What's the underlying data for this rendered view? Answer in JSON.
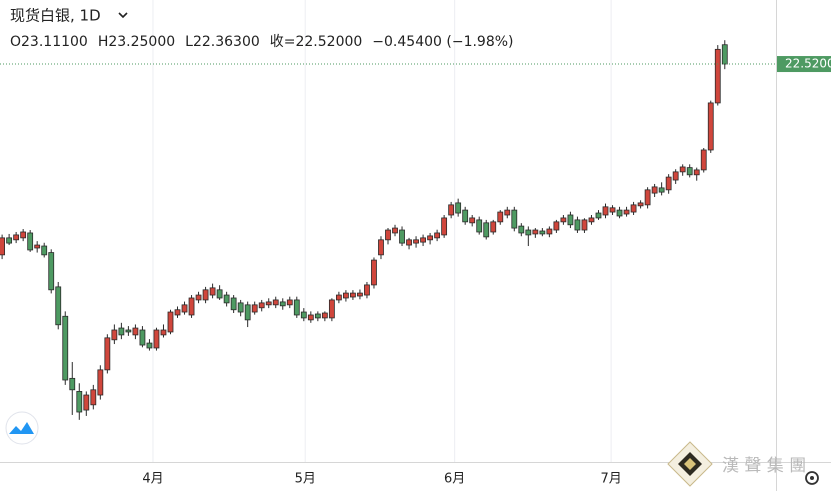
{
  "chart_data": {
    "type": "candlestick",
    "title": "现货白银, 1D",
    "legend_values": [
      "O23.11100",
      "H23.25000",
      "L22.36300",
      "收=22.52000",
      "−0.45400 (−1.98%)"
    ],
    "watermark": "漢 聲 集 團",
    "up_color": "#d0463c",
    "down_color": "#4e9a62",
    "grid": true,
    "ylim": [
      10.34,
      24.48
    ],
    "xlim": [
      -0.3,
      110.3
    ],
    "xticks": [
      {
        "value": 21.5,
        "label": "4月"
      },
      {
        "value": 43.2,
        "label": "5月"
      },
      {
        "value": 64.5,
        "label": "6月"
      },
      {
        "value": 86.8,
        "label": "7月"
      }
    ],
    "last_price": {
      "value": 22.52,
      "label": "22.5200"
    },
    "open": [
      16.68,
      17.2,
      17.14,
      17.2,
      17.35,
      16.89,
      16.95,
      16.75,
      15.7,
      14.8,
      12.9,
      12.5,
      11.93,
      12.09,
      12.39,
      13.16,
      14.08,
      14.44,
      14.38,
      14.23,
      14.38,
      13.98,
      13.83,
      14.23,
      14.32,
      14.84,
      14.93,
      14.84,
      15.3,
      15.3,
      15.45,
      15.61,
      15.45,
      15.36,
      15.21,
      15.15,
      14.93,
      15.06,
      15.15,
      15.15,
      15.24,
      15.15,
      15.3,
      14.93,
      14.69,
      14.87,
      14.75,
      14.75,
      15.3,
      15.36,
      15.39,
      15.42,
      15.45,
      15.76,
      16.68,
      17.14,
      17.35,
      17.44,
      16.98,
      17.04,
      17.07,
      17.14,
      17.2,
      17.29,
      17.9,
      18.27,
      18.05,
      17.66,
      17.75,
      17.66,
      17.38,
      17.69,
      17.9,
      18.05,
      17.56,
      17.44,
      17.32,
      17.41,
      17.32,
      17.44,
      17.69,
      17.9,
      17.75,
      17.44,
      17.69,
      17.96,
      17.9,
      17.99,
      18.05,
      17.93,
      17.99,
      18.18,
      18.21,
      18.57,
      18.73,
      18.67,
      18.97,
      19.22,
      19.35,
      19.13,
      19.28,
      19.89,
      21.33,
      23.111
    ],
    "high": [
      17.3,
      17.32,
      17.38,
      17.47,
      17.44,
      17.1,
      17.05,
      16.85,
      15.85,
      14.95,
      13.4,
      12.75,
      12.5,
      12.7,
      13.3,
      14.25,
      14.55,
      14.6,
      14.5,
      14.55,
      14.5,
      14.1,
      14.45,
      14.55,
      15.0,
      15.1,
      15.25,
      15.45,
      15.55,
      15.7,
      15.8,
      15.75,
      15.55,
      15.45,
      15.3,
      15.25,
      15.25,
      15.3,
      15.35,
      15.4,
      15.35,
      15.4,
      15.4,
      15.05,
      14.95,
      14.95,
      14.95,
      15.35,
      15.55,
      15.6,
      15.6,
      15.62,
      15.85,
      16.6,
      17.25,
      17.5,
      17.6,
      17.55,
      17.2,
      17.25,
      17.3,
      17.35,
      17.45,
      17.9,
      18.3,
      18.4,
      18.15,
      17.9,
      17.85,
      17.75,
      17.75,
      18.05,
      18.15,
      18.15,
      17.65,
      17.55,
      17.5,
      17.5,
      17.55,
      17.75,
      17.9,
      18.0,
      17.85,
      17.8,
      17.9,
      18.05,
      18.25,
      18.2,
      18.15,
      18.15,
      18.3,
      18.35,
      18.75,
      18.85,
      18.9,
      19.15,
      19.3,
      19.45,
      19.45,
      19.35,
      19.95,
      21.4,
      23.1,
      23.25
    ],
    "low": [
      16.55,
      16.98,
      17.04,
      17.1,
      16.77,
      16.75,
      16.6,
      15.5,
      14.4,
      12.7,
      11.78,
      11.63,
      11.75,
      11.95,
      12.25,
      13.05,
      13.95,
      14.1,
      14.2,
      14.1,
      13.85,
      13.75,
      13.75,
      14.15,
      14.25,
      14.75,
      14.85,
      14.75,
      15.2,
      15.2,
      15.35,
      15.3,
      15.1,
      14.9,
      14.8,
      14.47,
      14.85,
      14.95,
      15.05,
      15.05,
      15.0,
      15.05,
      14.75,
      14.65,
      14.6,
      14.65,
      14.65,
      14.65,
      15.2,
      15.25,
      15.3,
      15.32,
      15.35,
      15.65,
      16.55,
      17.0,
      17.25,
      16.95,
      16.85,
      16.9,
      16.95,
      17.0,
      17.1,
      17.2,
      17.8,
      17.85,
      17.6,
      17.55,
      17.3,
      17.15,
      17.3,
      17.6,
      17.8,
      17.4,
      17.25,
      16.95,
      17.2,
      17.25,
      17.22,
      17.35,
      17.6,
      17.5,
      17.35,
      17.35,
      17.6,
      17.75,
      17.8,
      17.9,
      17.8,
      17.85,
      17.9,
      18.1,
      18.1,
      18.45,
      18.5,
      18.55,
      18.85,
      19.1,
      19.05,
      18.95,
      19.2,
      19.8,
      21.25,
      22.363
    ],
    "close": [
      17.2,
      17.04,
      17.29,
      17.38,
      16.83,
      16.98,
      16.68,
      15.61,
      14.54,
      12.85,
      12.55,
      11.87,
      12.39,
      12.55,
      13.16,
      14.14,
      14.38,
      14.23,
      14.32,
      14.44,
      13.92,
      13.83,
      14.38,
      14.38,
      14.93,
      15.0,
      15.15,
      15.36,
      15.45,
      15.61,
      15.67,
      15.36,
      15.21,
      15.0,
      14.93,
      14.69,
      15.15,
      15.21,
      15.24,
      15.3,
      15.12,
      15.3,
      14.84,
      14.75,
      14.84,
      14.75,
      14.9,
      15.3,
      15.45,
      15.51,
      15.51,
      15.51,
      15.76,
      16.52,
      17.14,
      17.44,
      17.5,
      17.04,
      17.14,
      17.14,
      17.2,
      17.26,
      17.35,
      17.81,
      18.21,
      17.96,
      17.69,
      17.81,
      17.38,
      17.23,
      17.69,
      17.99,
      18.05,
      17.5,
      17.35,
      17.29,
      17.44,
      17.32,
      17.47,
      17.69,
      17.81,
      17.6,
      17.44,
      17.75,
      17.81,
      17.81,
      18.15,
      18.12,
      17.87,
      18.05,
      18.21,
      18.27,
      18.67,
      18.76,
      18.6,
      19.06,
      19.22,
      19.37,
      19.13,
      19.28,
      19.89,
      21.33,
      22.97,
      22.52
    ]
  }
}
